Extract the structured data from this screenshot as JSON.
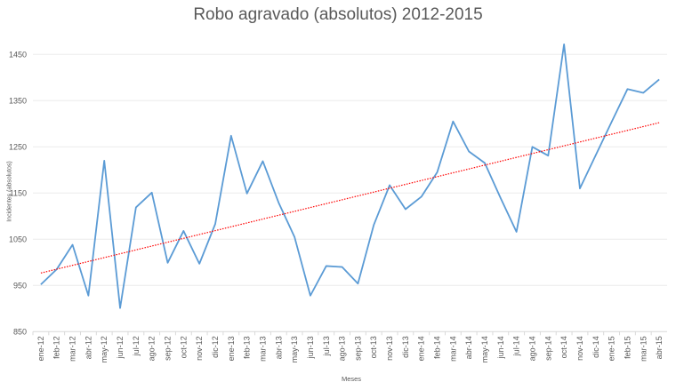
{
  "chart_data": {
    "type": "line",
    "title": "Robo agravado (absolutos) 2012-2015",
    "xlabel": "Meses",
    "ylabel": "Incidentes (absolutos)",
    "ylim": [
      850,
      1500
    ],
    "yticks": [
      850,
      950,
      1050,
      1150,
      1250,
      1350,
      1450
    ],
    "grid": true,
    "categories": [
      "ene-12",
      "feb-12",
      "mar-12",
      "abr-12",
      "may-12",
      "jun-12",
      "jul-12",
      "ago-12",
      "sep-12",
      "oct-12",
      "nov-12",
      "dic-12",
      "ene-13",
      "feb-13",
      "mar-13",
      "abr-13",
      "may-13",
      "jun-13",
      "jul-13",
      "ago-13",
      "sep-13",
      "oct-13",
      "nov-13",
      "dic-13",
      "ene-14",
      "feb-14",
      "mar-14",
      "abr-14",
      "may-14",
      "jun-14",
      "jul-14",
      "ago-14",
      "sep-14",
      "oct-14",
      "nov-14",
      "dic-14",
      "ene-15",
      "feb-15",
      "mar-15",
      "abr-15"
    ],
    "series": [
      {
        "values": [
          952,
          985,
          1038,
          928,
          1220,
          901,
          1119,
          1151,
          999,
          1068,
          997,
          1083,
          1274,
          1149,
          1219,
          1129,
          1055,
          928,
          992,
          990,
          954,
          1081,
          1167,
          1115,
          1142,
          1195,
          1305,
          1240,
          1215,
          1139,
          1066,
          1250,
          1231,
          1472,
          1160,
          1232,
          1304,
          1375,
          1367,
          1396
        ],
        "color": "#5B9BD5"
      }
    ],
    "trendline": {
      "type": "linear",
      "style": "dotted",
      "color": "#FF0000"
    }
  }
}
